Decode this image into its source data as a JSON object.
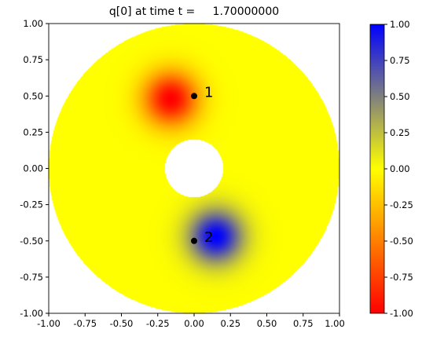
{
  "chart_data": {
    "type": "heatmap",
    "title": "q[0] at time t =     1.70000000",
    "domain": "annulus",
    "outer_radius": 1.0,
    "inner_radius": 0.2,
    "xlim": [
      -1.0,
      1.0
    ],
    "ylim": [
      -1.0,
      1.0
    ],
    "x_ticks": [
      "-1.00",
      "-0.75",
      "-0.50",
      "-0.25",
      "0.00",
      "0.25",
      "0.50",
      "0.75",
      "1.00"
    ],
    "y_ticks": [
      "1.00",
      "0.75",
      "0.50",
      "0.25",
      "0.00",
      "-0.25",
      "-0.50",
      "-0.75",
      "-1.00"
    ],
    "blobs": [
      {
        "x": -0.16,
        "y": 0.48,
        "amplitude": -1.0,
        "width": 0.13
      },
      {
        "x": 0.15,
        "y": -0.47,
        "amplitude": 1.0,
        "width": 0.13
      }
    ],
    "points": [
      {
        "label": "1",
        "x": 0.0,
        "y": 0.5
      },
      {
        "label": "2",
        "x": 0.0,
        "y": -0.5
      }
    ],
    "colorbar": {
      "min": -1.0,
      "max": 1.0,
      "ticks": [
        "1.00",
        "0.75",
        "0.50",
        "0.25",
        "0.00",
        "-0.25",
        "-0.50",
        "-0.75",
        "-1.00"
      ],
      "colors": [
        {
          "value": -1.0,
          "color": "#ff0000"
        },
        {
          "value": 0.0,
          "color": "#ffff00"
        },
        {
          "value": 1.0,
          "color": "#0000ff"
        }
      ]
    }
  }
}
